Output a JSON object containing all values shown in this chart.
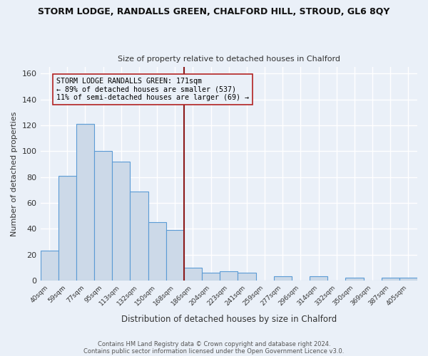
{
  "title": "STORM LODGE, RANDALLS GREEN, CHALFORD HILL, STROUD, GL6 8QY",
  "subtitle": "Size of property relative to detached houses in Chalford",
  "xlabel": "Distribution of detached houses by size in Chalford",
  "ylabel": "Number of detached properties",
  "footer_lines": [
    "Contains HM Land Registry data © Crown copyright and database right 2024.",
    "Contains public sector information licensed under the Open Government Licence v3.0."
  ],
  "bin_labels": [
    "40sqm",
    "59sqm",
    "77sqm",
    "95sqm",
    "113sqm",
    "132sqm",
    "150sqm",
    "168sqm",
    "186sqm",
    "204sqm",
    "223sqm",
    "241sqm",
    "259sqm",
    "277sqm",
    "296sqm",
    "314sqm",
    "332sqm",
    "350sqm",
    "369sqm",
    "387sqm",
    "405sqm"
  ],
  "bin_counts": [
    23,
    81,
    121,
    100,
    92,
    69,
    45,
    39,
    10,
    6,
    7,
    6,
    0,
    3,
    0,
    3,
    0,
    2,
    0,
    2,
    2
  ],
  "bar_color": "#ccd9e8",
  "bar_edge_color": "#5b9bd5",
  "background_color": "#eaf0f8",
  "grid_color": "#ffffff",
  "annotation_line_color": "#8b1a1a",
  "annotation_text_lines": [
    "STORM LODGE RANDALLS GREEN: 171sqm",
    "← 89% of detached houses are smaller (537)",
    "11% of semi-detached houses are larger (69) →"
  ],
  "annotation_box_edgecolor": "#b22222",
  "ylim": [
    0,
    165
  ],
  "yticks": [
    0,
    20,
    40,
    60,
    80,
    100,
    120,
    140,
    160
  ]
}
